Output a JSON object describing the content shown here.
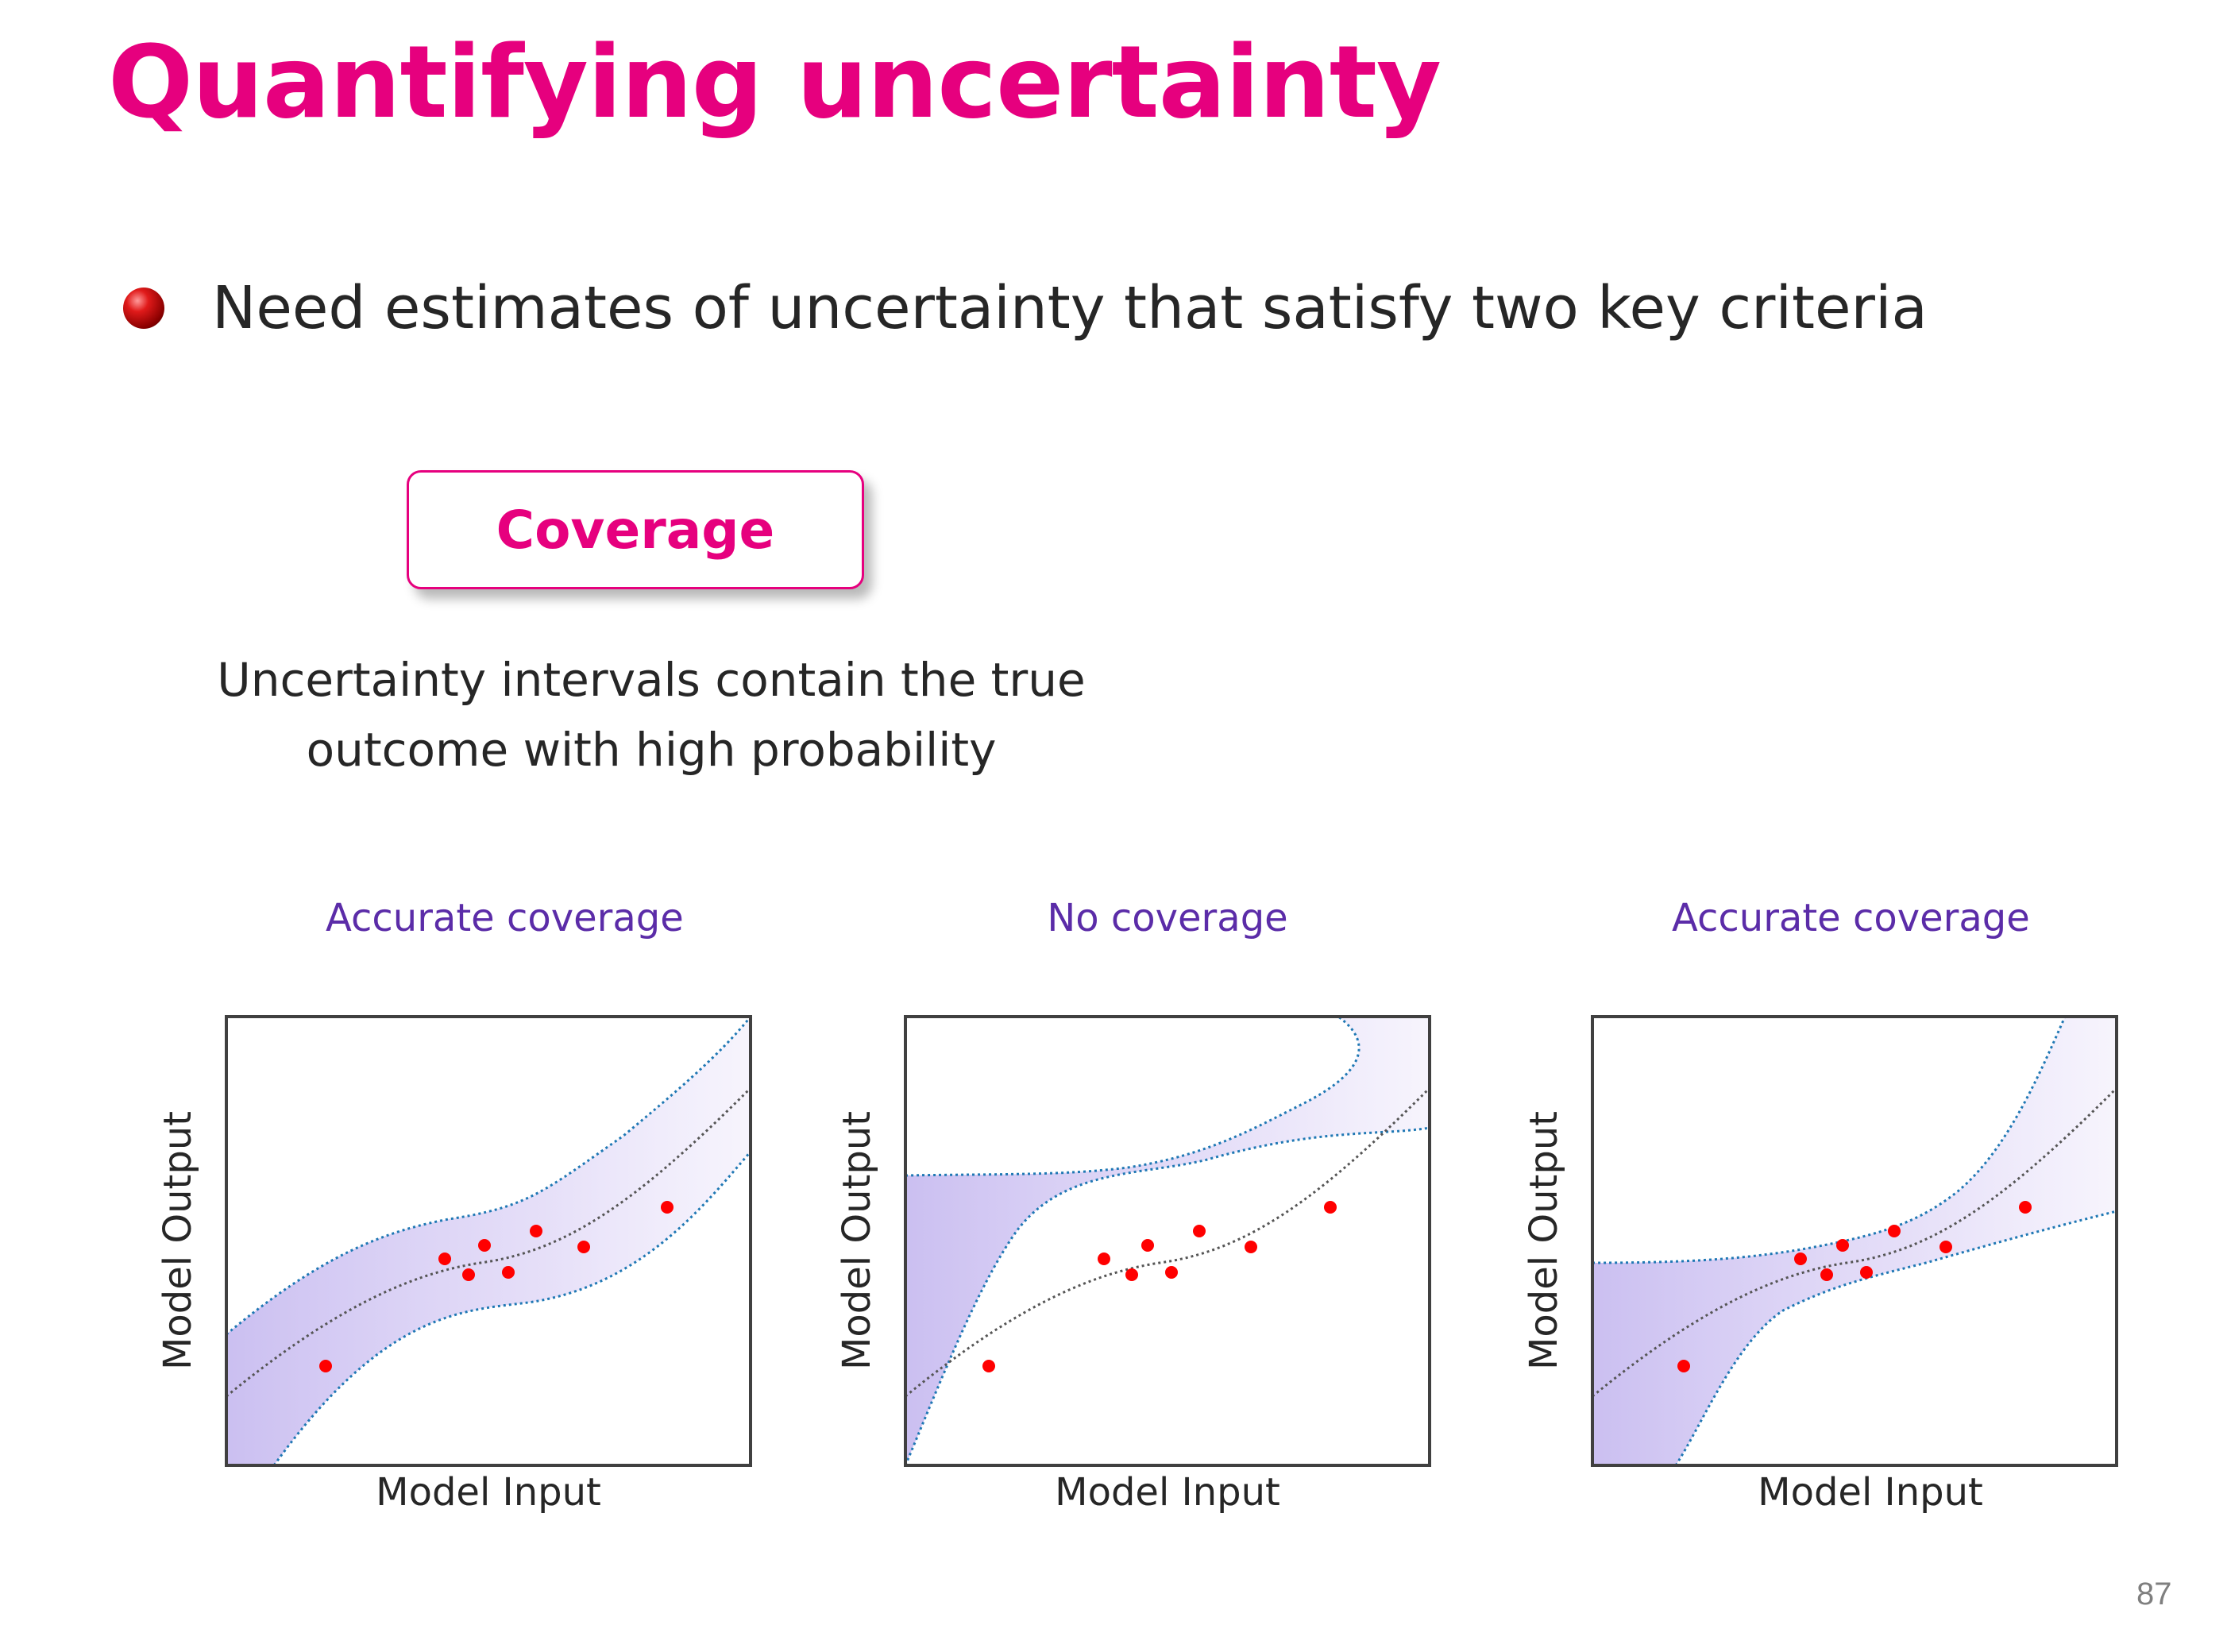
{
  "title": "Quantifying uncertainty",
  "bullet": {
    "text": "Need estimates of uncertainty that satisfy two key criteria",
    "icon": "red-sphere-bullet-icon"
  },
  "criterion": {
    "label": "Coverage",
    "description_line1": "Uncertainty intervals contain the true",
    "description_line2": "outcome with high probability"
  },
  "panels": [
    {
      "title": "Accurate coverage",
      "xlabel": "Model Input",
      "ylabel": "Model Output"
    },
    {
      "title": "No coverage",
      "xlabel": "Model Input",
      "ylabel": "Model Output"
    },
    {
      "title": "Accurate coverage",
      "xlabel": "Model Input",
      "ylabel": "Model Output"
    }
  ],
  "page_number": "87",
  "colors": {
    "title": "#E6007E",
    "panel_title": "#5B2CA8",
    "band_fill": "#c9bdf0",
    "band_edge": "#1f78b4",
    "mean_line": "#555555",
    "points": "#ff0000"
  }
}
